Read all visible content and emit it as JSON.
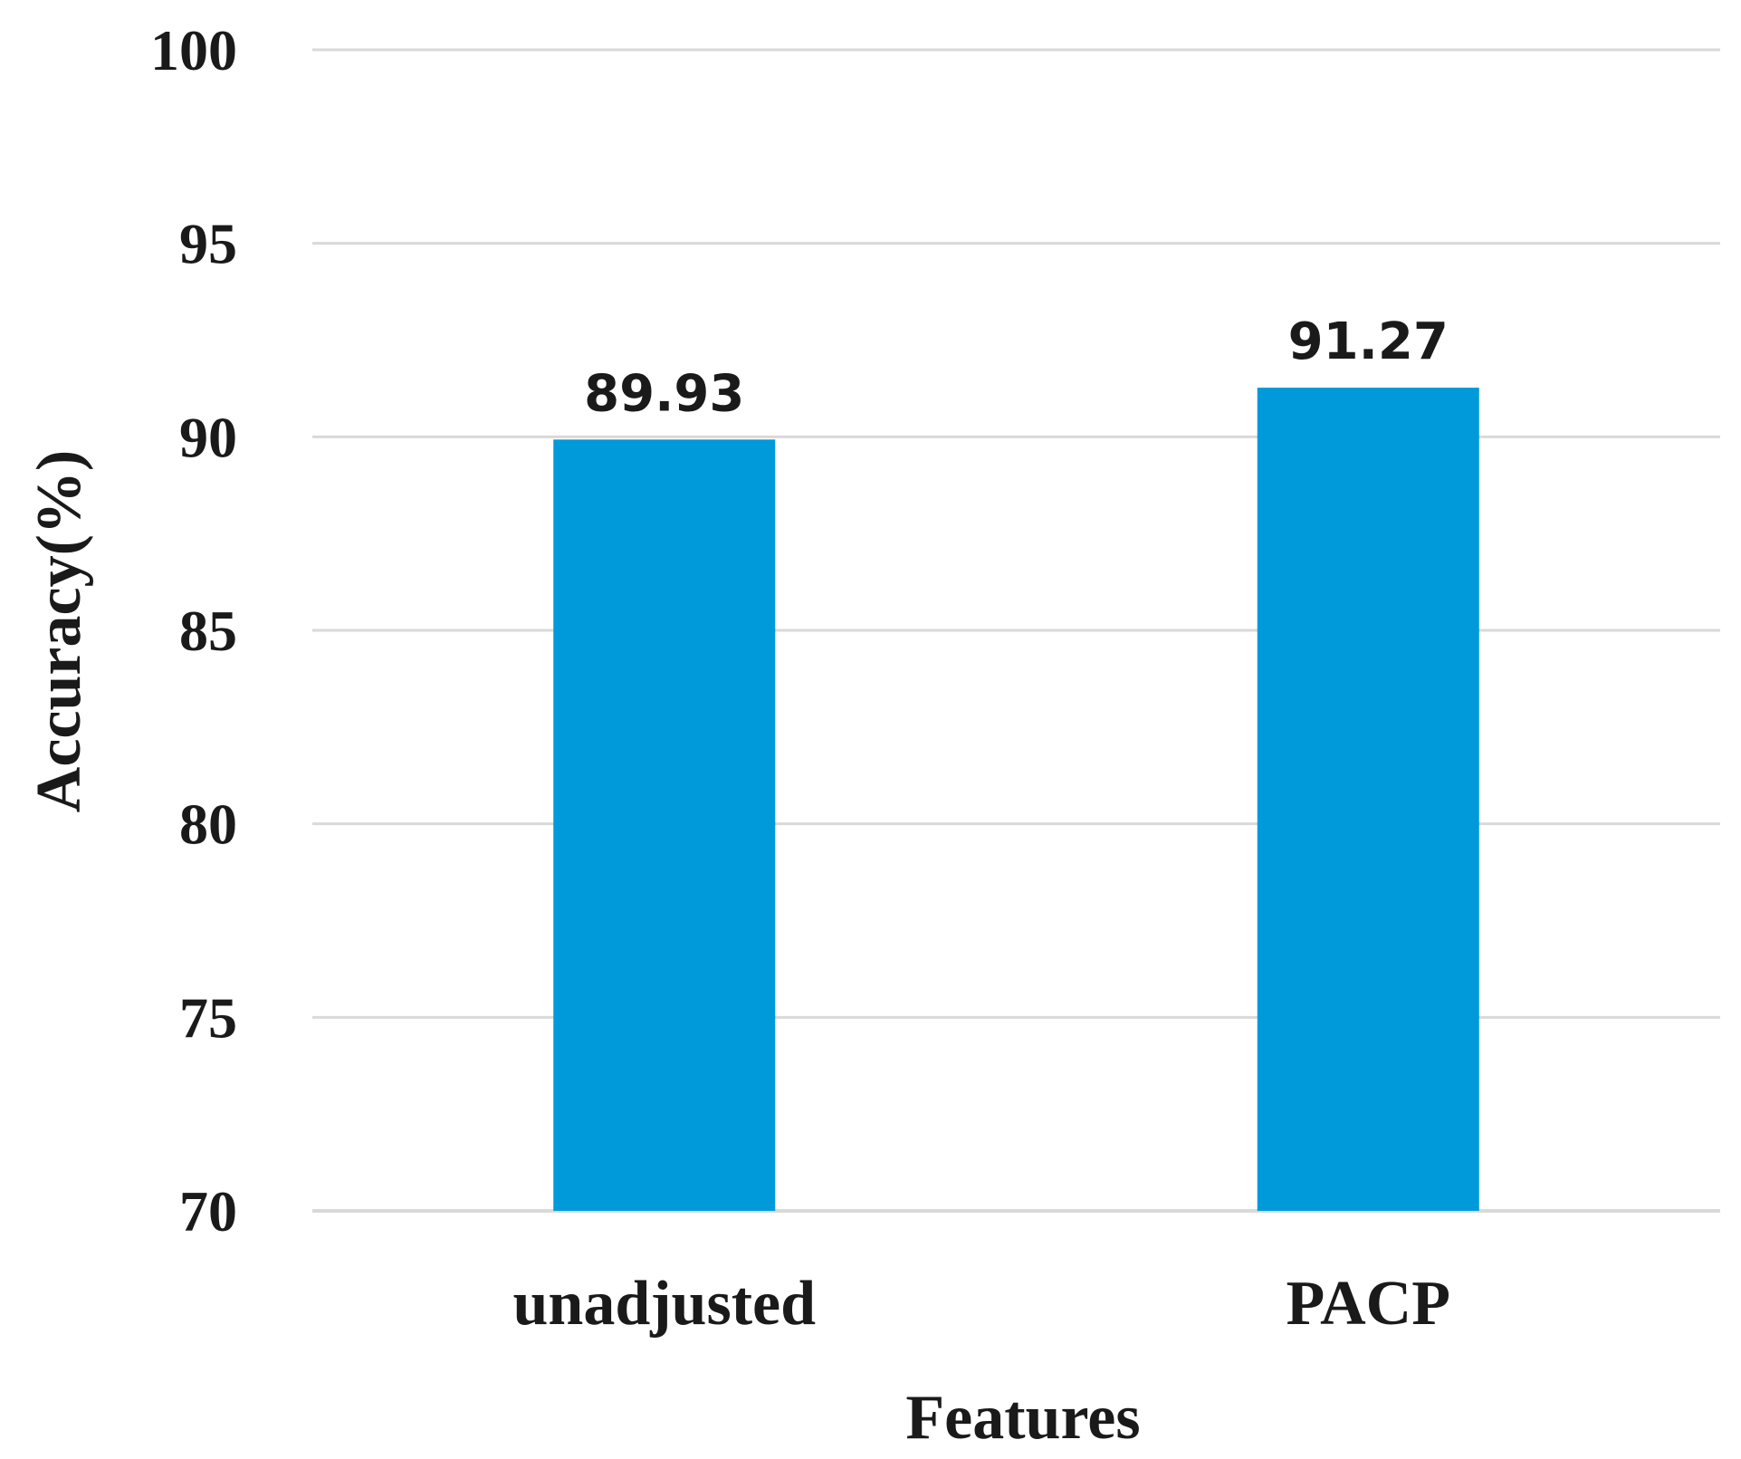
{
  "chart_data": {
    "type": "bar",
    "categories": [
      "unadjusted",
      "PACP"
    ],
    "values": [
      89.93,
      91.27
    ],
    "data_labels": [
      "89.93",
      "91.27"
    ],
    "title": "",
    "xlabel": "Features",
    "ylabel": "Accuracy(%)",
    "ylim": [
      70,
      100
    ],
    "yticks": [
      70,
      75,
      80,
      85,
      90,
      95,
      100
    ],
    "ytick_labels": [
      "70",
      "75",
      "80",
      "85",
      "90",
      "95",
      "100"
    ],
    "grid": true,
    "legend": "none",
    "colors": {
      "bar": "#009ADA",
      "grid": "#D9D9D9",
      "text": "#1A1A1A"
    }
  }
}
